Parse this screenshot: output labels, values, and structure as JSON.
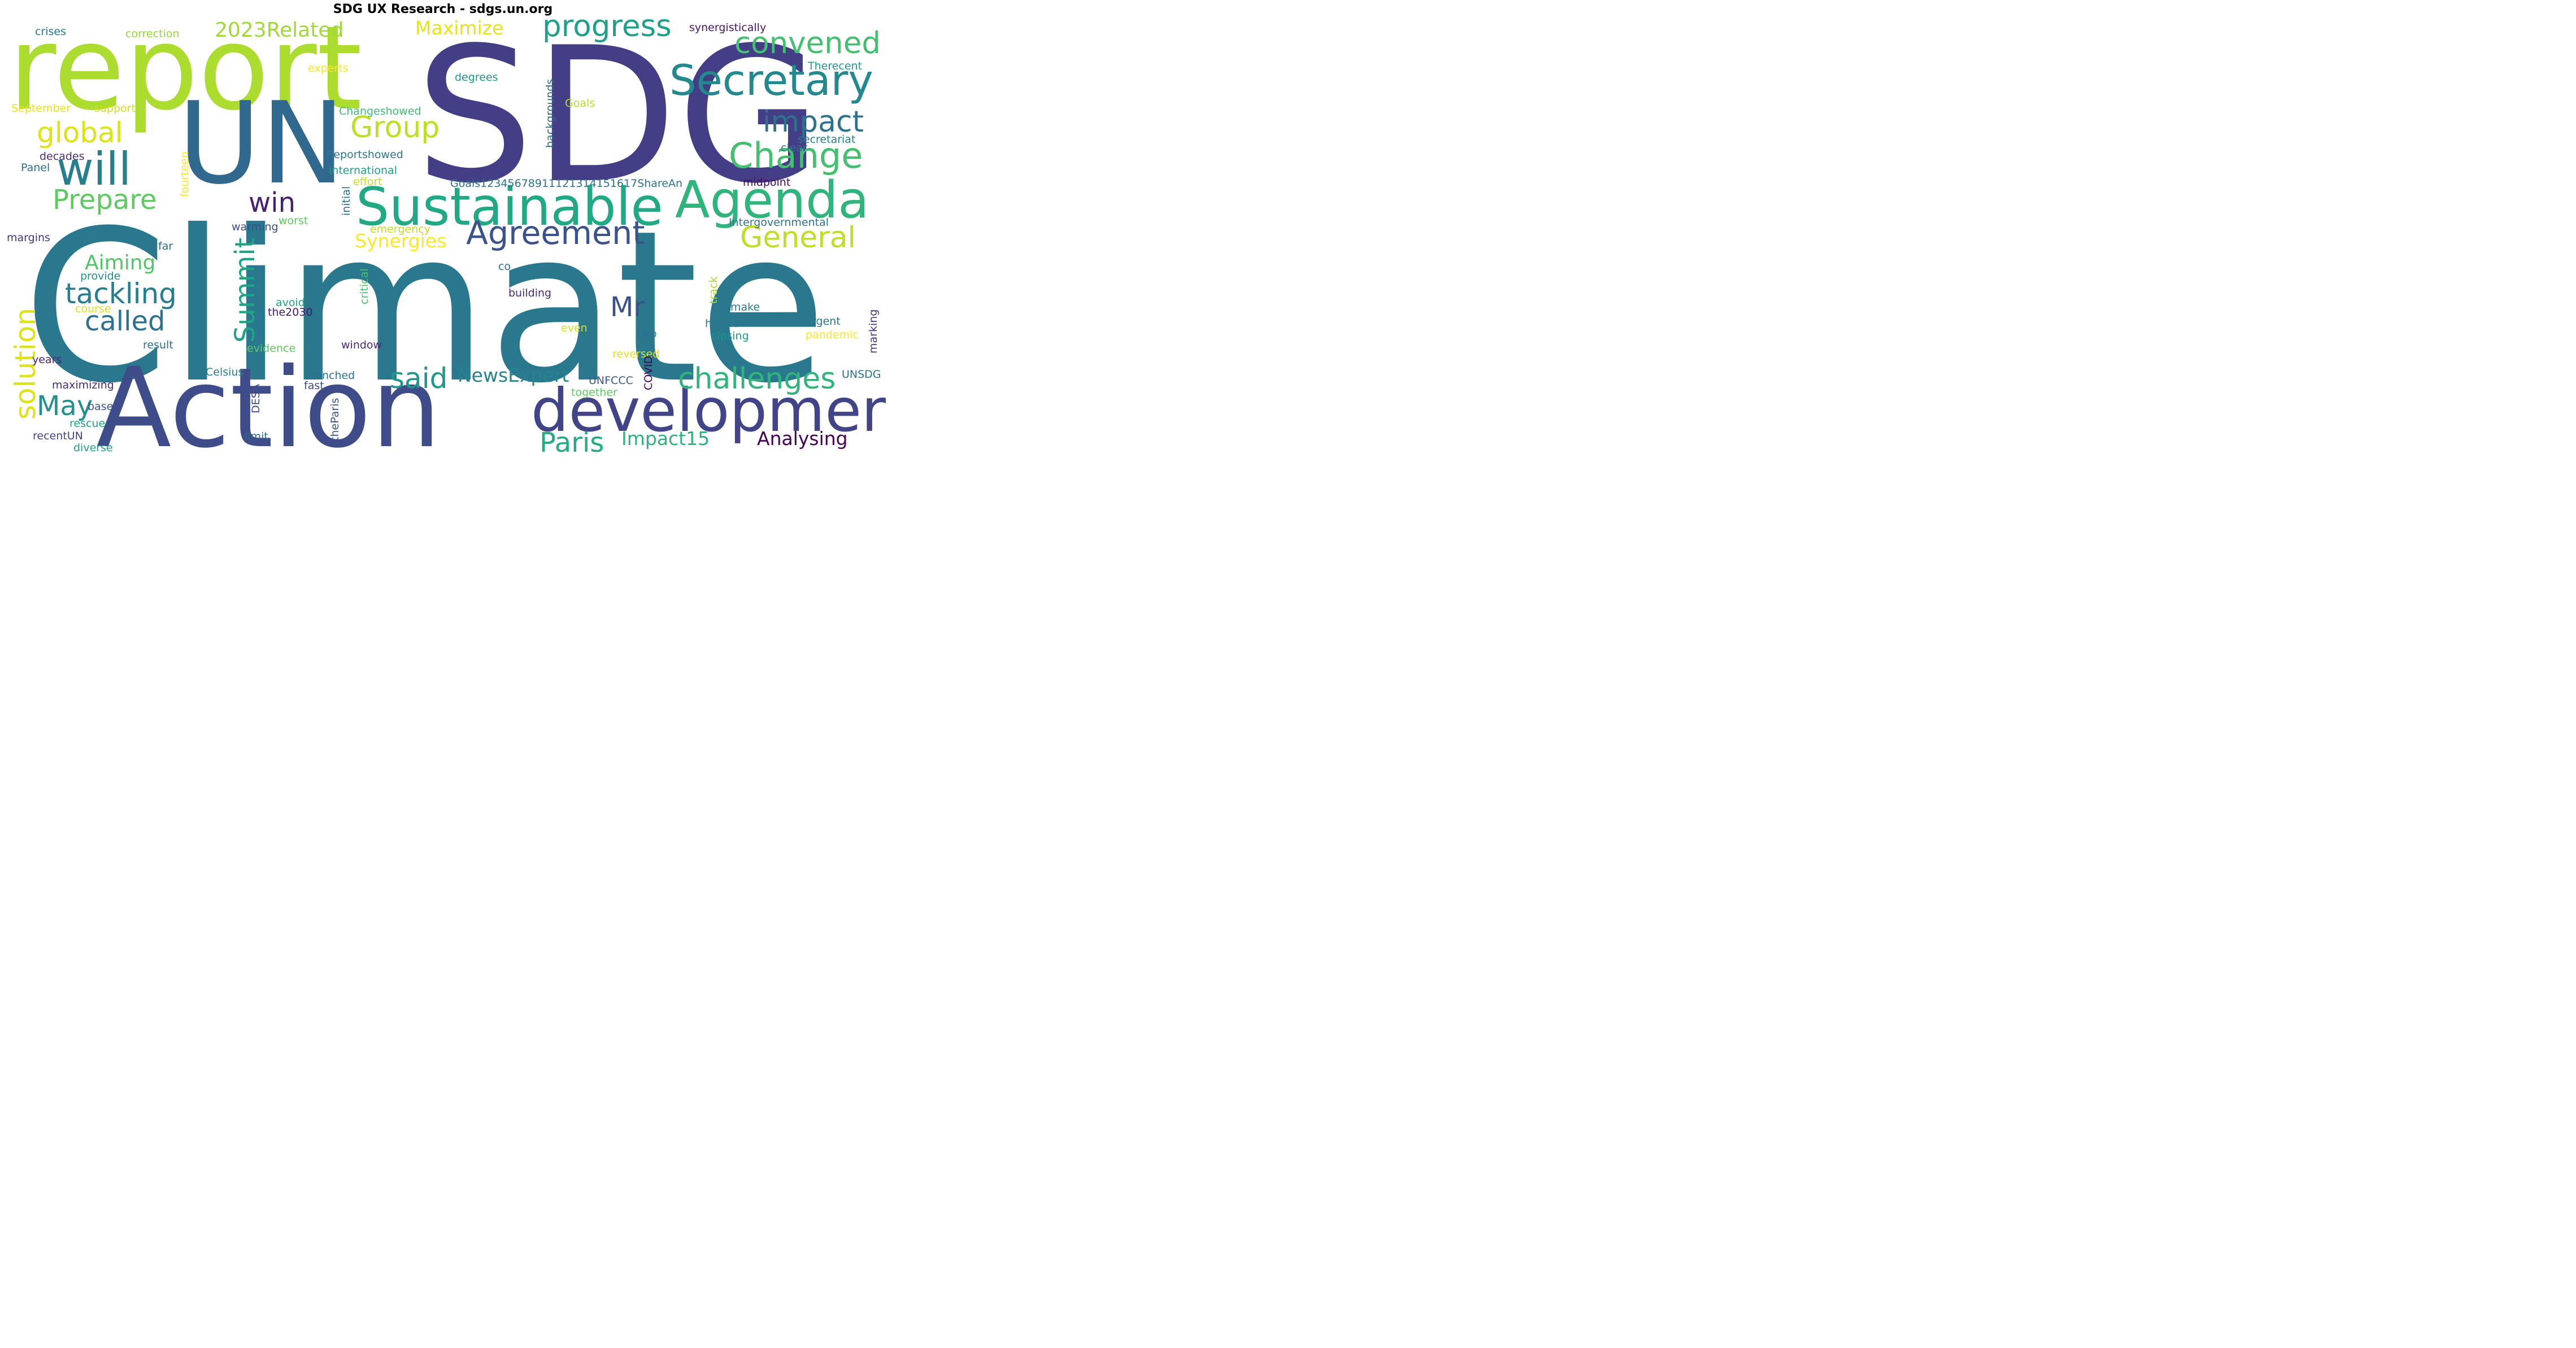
{
  "title": "SDG UX Research - sdgs.un.org",
  "words": [
    {
      "text": "Climate",
      "color": "#2a788e"
    },
    {
      "text": "SDG",
      "color": "#433e85"
    },
    {
      "text": "report",
      "color": "#addc30"
    },
    {
      "text": "Action",
      "color": "#3e4c8a"
    },
    {
      "text": "UN",
      "color": "#31688e"
    },
    {
      "text": "development",
      "color": "#414487"
    },
    {
      "text": "Sustainable",
      "color": "#22a884"
    },
    {
      "text": "Agenda",
      "color": "#2fb47c"
    },
    {
      "text": "Secretary",
      "color": "#23898e"
    },
    {
      "text": "will",
      "color": "#277f8e"
    },
    {
      "text": "Change",
      "color": "#44bf70"
    },
    {
      "text": "progress",
      "color": "#1fa088"
    },
    {
      "text": "convened",
      "color": "#44bf70"
    },
    {
      "text": "Agreement",
      "color": "#3b528b"
    },
    {
      "text": "impact",
      "color": "#2c728e"
    },
    {
      "text": "General",
      "color": "#bddf26"
    },
    {
      "text": "challenges",
      "color": "#2fb47c"
    },
    {
      "text": "tackling",
      "color": "#287c8e"
    },
    {
      "text": "called",
      "color": "#2c728e"
    },
    {
      "text": "Group",
      "color": "#bddf26"
    },
    {
      "text": "global",
      "color": "#dde318"
    },
    {
      "text": "Prepare",
      "color": "#5ec962"
    },
    {
      "text": "win",
      "color": "#482173"
    },
    {
      "text": "Summit",
      "color": "#20a386"
    },
    {
      "text": "solution",
      "color": "#dde318"
    },
    {
      "text": "said",
      "color": "#1f988b"
    },
    {
      "text": "May",
      "color": "#21918c"
    },
    {
      "text": "Paris",
      "color": "#25ab82"
    },
    {
      "text": "Mr",
      "color": "#3b528b"
    },
    {
      "text": "Analysing",
      "color": "#440154"
    },
    {
      "text": "Synergies",
      "color": "#fde725"
    },
    {
      "text": "Maximize",
      "color": "#e5e419"
    },
    {
      "text": "2023Related",
      "color": "#a0da39"
    },
    {
      "text": "NewsExpert",
      "color": "#26828e"
    },
    {
      "text": "Aiming",
      "color": "#52c569"
    },
    {
      "text": "Impact15",
      "color": "#2db27d"
    },
    {
      "text": "synergistically",
      "color": "#481668"
    },
    {
      "text": "crises",
      "color": "#2a788e"
    },
    {
      "text": "correction",
      "color": "#95d840"
    },
    {
      "text": "experts",
      "color": "#fde725"
    },
    {
      "text": "degrees",
      "color": "#1f988b"
    },
    {
      "text": "Therecent",
      "color": "#1e9b8a"
    },
    {
      "text": "September",
      "color": "#e7e419"
    },
    {
      "text": "support",
      "color": "#d0e11c"
    },
    {
      "text": "Changeshowed",
      "color": "#3dbc74"
    },
    {
      "text": "backgrounds",
      "color": "#31688e"
    },
    {
      "text": "Goals",
      "color": "#b5de2b"
    },
    {
      "text": "secretariat",
      "color": "#26828e"
    },
    {
      "text": "decades",
      "color": "#472d7b"
    },
    {
      "text": "Reportshowed",
      "color": "#2a788e"
    },
    {
      "text": "clear",
      "color": "#2c728e"
    },
    {
      "text": "Panel",
      "color": "#2d708e"
    },
    {
      "text": "international",
      "color": "#1fa088"
    },
    {
      "text": "fourteen",
      "color": "#fde725"
    },
    {
      "text": "effort",
      "color": "#c2df23"
    },
    {
      "text": "Goals1234567891112131415161​7ShareAn",
      "color": "#2c728e"
    },
    {
      "text": "midpoint",
      "color": "#46085c"
    },
    {
      "text": "initial",
      "color": "#2c728e"
    },
    {
      "text": "worst",
      "color": "#5ec962"
    },
    {
      "text": "Intergovernmental",
      "color": "#2c728e"
    },
    {
      "text": "warming",
      "color": "#3e4c8a"
    },
    {
      "text": "emergency",
      "color": "#bddf26"
    },
    {
      "text": "margins",
      "color": "#443983"
    },
    {
      "text": "far",
      "color": "#31688e"
    },
    {
      "text": "critical",
      "color": "#4ac16d"
    },
    {
      "text": "co",
      "color": "#2c728e"
    },
    {
      "text": "provide",
      "color": "#21918c"
    },
    {
      "text": "track",
      "color": "#a8db34"
    },
    {
      "text": "course",
      "color": "#d8e219"
    },
    {
      "text": "building",
      "color": "#472d7b"
    },
    {
      "text": "avoid",
      "color": "#20a386"
    },
    {
      "text": "the2030",
      "color": "#481a6c"
    },
    {
      "text": "make",
      "color": "#277f8e"
    },
    {
      "text": "marking",
      "color": "#46337f"
    },
    {
      "text": "urgent",
      "color": "#2a788e"
    },
    {
      "text": "even",
      "color": "#d8e219"
    },
    {
      "text": "halted",
      "color": "#2a788e"
    },
    {
      "text": "result",
      "color": "#2c728e"
    },
    {
      "text": "two",
      "color": "#2c728e"
    },
    {
      "text": "pandemic",
      "color": "#fde725"
    },
    {
      "text": "window",
      "color": "#482878"
    },
    {
      "text": "closing",
      "color": "#1f988b"
    },
    {
      "text": "years",
      "color": "#482475"
    },
    {
      "text": "evidence",
      "color": "#5ec962"
    },
    {
      "text": "reversed",
      "color": "#e2e418"
    },
    {
      "text": "Celsius",
      "color": "#26828e"
    },
    {
      "text": "COVID",
      "color": "#440154"
    },
    {
      "text": "UNSDG",
      "color": "#2c728e"
    },
    {
      "text": "UNFCCC",
      "color": "#38598c"
    },
    {
      "text": "launched",
      "color": "#2d708e"
    },
    {
      "text": "maximizing",
      "color": "#482878"
    },
    {
      "text": "DESA",
      "color": "#3e4c8a"
    },
    {
      "text": "fast",
      "color": "#3e4c8a"
    },
    {
      "text": "together",
      "color": "#5ec962"
    },
    {
      "text": "base",
      "color": "#3b528b"
    },
    {
      "text": "rescue",
      "color": "#20a386"
    },
    {
      "text": "theParis",
      "color": "#3b528b"
    },
    {
      "text": "recentUN",
      "color": "#404688"
    },
    {
      "text": "limit",
      "color": "#31688e"
    },
    {
      "text": "diverse",
      "color": "#1fa088"
    }
  ]
}
